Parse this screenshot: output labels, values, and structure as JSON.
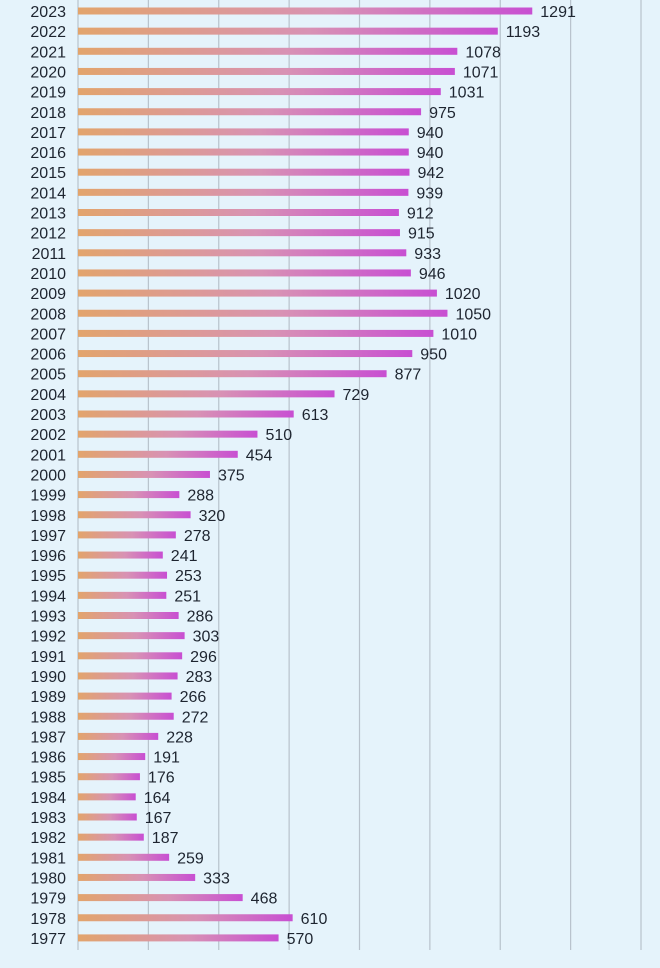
{
  "chart_data": {
    "type": "bar",
    "orientation": "horizontal",
    "title": "",
    "xlabel": "",
    "ylabel": "",
    "xlim": [
      0,
      1600
    ],
    "grid": true,
    "colors": {
      "bar_start": "#e2a46c",
      "bar_mid": "#d892b4",
      "bar_end": "#c84fd2",
      "background": "#e5f3fb",
      "grid": "#b8c2cc"
    },
    "categories": [
      "2023",
      "2022",
      "2021",
      "2020",
      "2019",
      "2018",
      "2017",
      "2016",
      "2015",
      "2014",
      "2013",
      "2012",
      "2011",
      "2010",
      "2009",
      "2008",
      "2007",
      "2006",
      "2005",
      "2004",
      "2003",
      "2002",
      "2001",
      "2000",
      "1999",
      "1998",
      "1997",
      "1996",
      "1995",
      "1994",
      "1993",
      "1992",
      "1991",
      "1990",
      "1989",
      "1988",
      "1987",
      "1986",
      "1985",
      "1984",
      "1983",
      "1982",
      "1981",
      "1980",
      "1979",
      "1978",
      "1977"
    ],
    "values": [
      1291,
      1193,
      1078,
      1071,
      1031,
      975,
      940,
      940,
      942,
      939,
      912,
      915,
      933,
      946,
      1020,
      1050,
      1010,
      950,
      877,
      729,
      613,
      510,
      454,
      375,
      288,
      320,
      278,
      241,
      253,
      251,
      286,
      303,
      296,
      283,
      266,
      272,
      228,
      191,
      176,
      164,
      167,
      187,
      259,
      333,
      468,
      610,
      570
    ]
  }
}
